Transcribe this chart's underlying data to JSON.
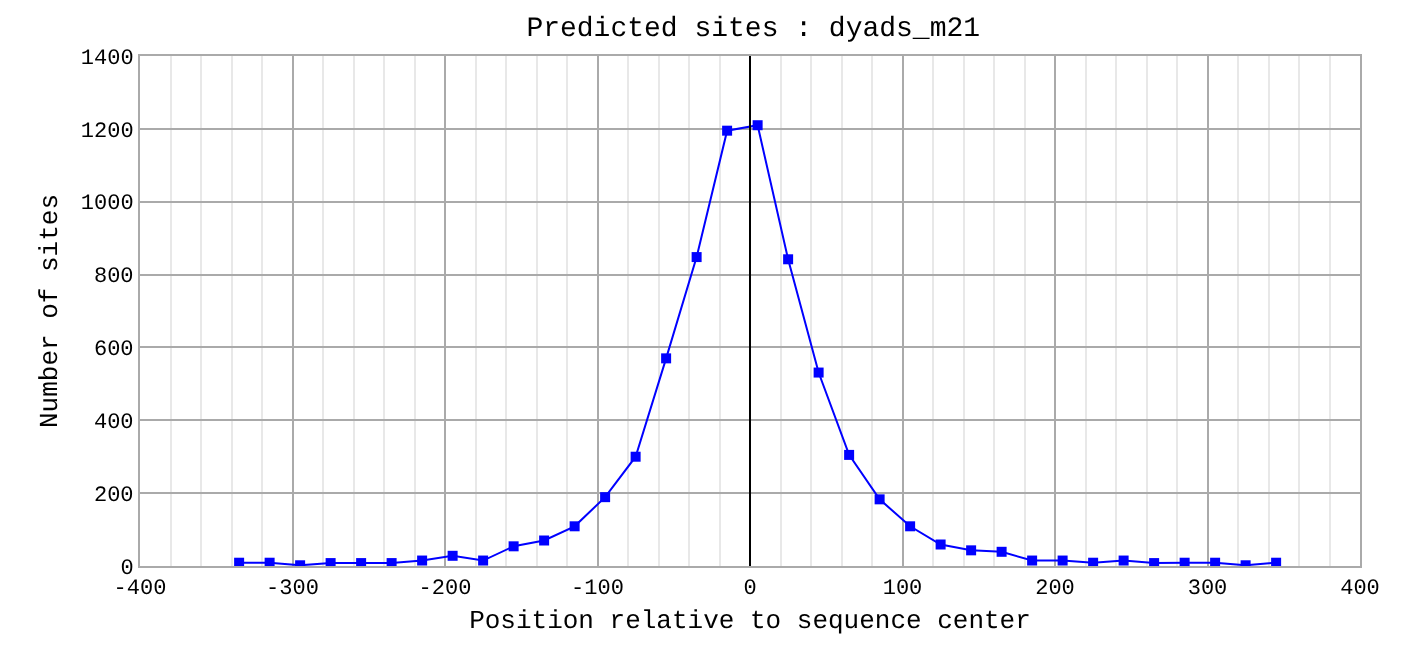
{
  "chart_data": {
    "type": "line",
    "title": "Predicted sites : dyads_m21",
    "xlabel": "Position relative to sequence center",
    "ylabel": "Number of sites",
    "x": [
      -335,
      -315,
      -295,
      -275,
      -255,
      -235,
      -215,
      -195,
      -175,
      -155,
      -135,
      -115,
      -95,
      -75,
      -55,
      -35,
      -15,
      5,
      25,
      45,
      65,
      85,
      105,
      125,
      145,
      165,
      185,
      205,
      225,
      245,
      265,
      285,
      305,
      325,
      345
    ],
    "series": [
      {
        "color": "#0000ff",
        "values": [
          9,
          9,
          2,
          8,
          8,
          8,
          15,
          28,
          15,
          54,
          70,
          109,
          189,
          300,
          570,
          848,
          1195,
          1210,
          842,
          531,
          305,
          183,
          109,
          59,
          43,
          39,
          15,
          15,
          9,
          15,
          8,
          9,
          9,
          2,
          9
        ]
      }
    ],
    "xlim": [
      -400,
      400
    ],
    "xticks": [
      -400,
      -300,
      -200,
      -100,
      0,
      100,
      200,
      300,
      400
    ],
    "ylim": [
      0,
      1400
    ],
    "yticks": [
      0,
      200,
      400,
      600,
      800,
      1000,
      1200,
      1400
    ],
    "grid": true,
    "marker": "square",
    "line_style": "solid",
    "ref_lines": [
      {
        "axis": "x",
        "value": 0,
        "color": "#000000"
      }
    ]
  }
}
